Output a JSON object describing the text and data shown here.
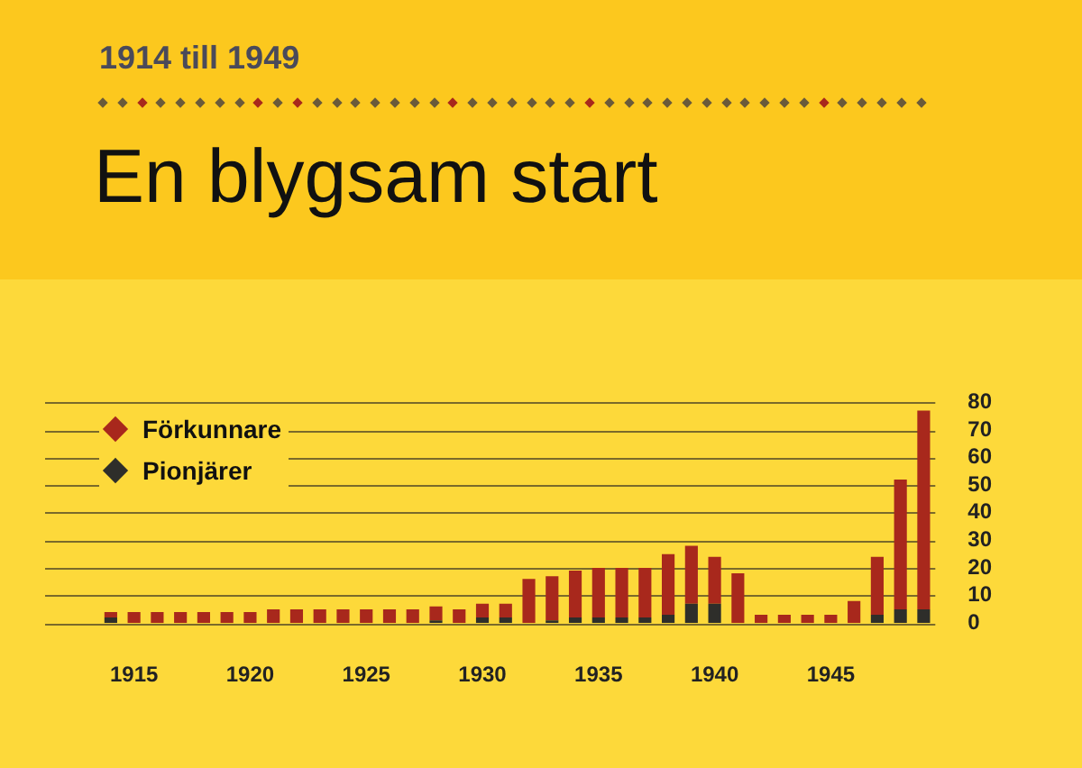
{
  "chart_data": {
    "type": "bar",
    "subtitle": "1914 till 1949",
    "title": "En blygsam start",
    "categories": [
      null,
      "1915",
      null,
      null,
      null,
      null,
      "1920",
      null,
      null,
      null,
      null,
      "1925",
      null,
      null,
      null,
      null,
      "1930",
      null,
      null,
      null,
      null,
      "1935",
      null,
      null,
      null,
      null,
      "1940",
      null,
      null,
      null,
      null,
      "1945",
      null,
      null,
      null,
      null
    ],
    "stacked": true,
    "series": [
      {
        "name": "Pionjärer",
        "color": "#2e2e2a",
        "values": [
          2,
          0,
          0,
          0,
          0,
          0,
          0,
          0,
          0,
          0,
          0,
          0,
          0,
          0,
          1,
          0,
          2,
          2,
          0,
          1,
          2,
          2,
          2,
          2,
          3,
          7,
          7,
          0,
          0,
          0,
          0,
          0,
          0,
          3,
          5,
          5
        ]
      },
      {
        "name": "Förkunnare",
        "color": "#a8281c",
        "values": [
          2,
          4,
          4,
          4,
          4,
          4,
          4,
          5,
          5,
          5,
          5,
          5,
          5,
          5,
          5,
          5,
          5,
          5,
          16,
          16,
          17,
          18,
          18,
          18,
          22,
          21,
          17,
          18,
          3,
          3,
          3,
          3,
          8,
          21,
          47,
          72
        ]
      }
    ],
    "ylim": [
      0,
      80
    ],
    "yticks": [
      0,
      10,
      20,
      30,
      40,
      50,
      60,
      70,
      80
    ],
    "grid": "y",
    "legend": "top left"
  }
}
